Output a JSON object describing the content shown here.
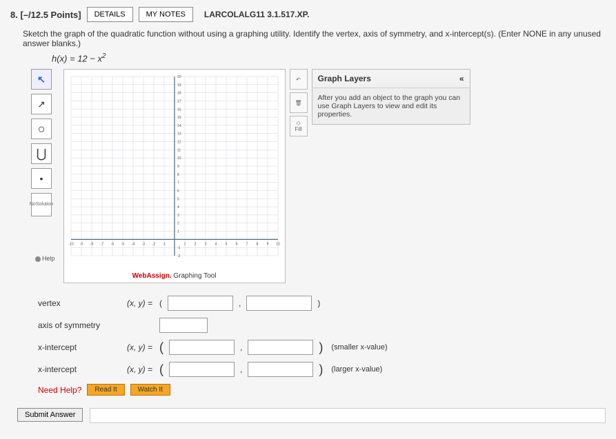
{
  "header": {
    "qnum": "8.",
    "points": "[–/12.5 Points]",
    "details": "DETAILS",
    "mynotes": "MY NOTES",
    "code": "LARCOLALG11 3.1.517.XP."
  },
  "prompt": "Sketch the graph of the quadratic function without using a graphing utility. Identify the vertex, axis of symmetry, and x-intercept(s). (Enter NONE in any unused answer blanks.)",
  "formula_prefix": "h(x) = 12 − x",
  "formula_exp": "2",
  "tools": {
    "pointer_glyph": "↖",
    "line_glyph": "↗",
    "circle_glyph": "○",
    "parabola_glyph": "⋃",
    "dot_glyph": "•",
    "nosol_line1": "No",
    "nosol_line2": "Solution",
    "help": "Help"
  },
  "side": {
    "undo_glyph": "↶",
    "del_glyph": "🗑",
    "fill_glyph": "◇",
    "fill_label": "Fill"
  },
  "layers": {
    "title": "Graph Layers",
    "collapse": "«",
    "body": "After you add an object to the graph you can use Graph Layers to view and edit its properties."
  },
  "graph": {
    "xmin": -10,
    "xmax": 10,
    "ymin": -2,
    "ymax": 20,
    "xstep": 1,
    "ystep": 1,
    "grid_color": "#d0d5d8",
    "axis_color": "#4a6a80",
    "bg": "#ffffff"
  },
  "caption": {
    "wa": "WebAssign.",
    "rest": " Graphing Tool"
  },
  "answers": {
    "vertex_label": "vertex",
    "pair": "(x, y) = ",
    "axis_label": "axis of symmetry",
    "xint_label": "x-intercept",
    "smaller": "(smaller x-value)",
    "larger": "(larger x-value)"
  },
  "help": {
    "need": "Need Help?",
    "read": "Read It",
    "watch": "Watch It"
  },
  "submit": "Submit Answer"
}
